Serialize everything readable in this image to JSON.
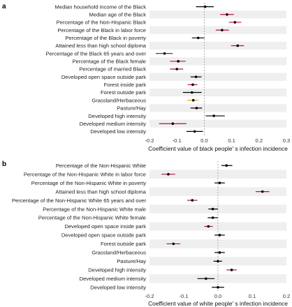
{
  "colors": {
    "positive": "#b5123a",
    "neutral": "#000000",
    "highlight": "#e0a020",
    "band": "#efefef",
    "zero_line": "#999999"
  },
  "chart_data": [
    {
      "type": "forest",
      "panel": "a",
      "xlabel": "Coefficient value of black people' s infection incidence",
      "xlim": [
        -0.2,
        0.3
      ],
      "xticks": [
        -0.2,
        -0.1,
        0.0,
        0.1,
        0.2,
        0.3
      ],
      "xtick_labels": [
        "-0.2",
        "-0.1",
        "0.0",
        "0.1",
        "0.2",
        "0.3"
      ],
      "rows": [
        {
          "label": "Median household income of the Black",
          "value": 0.003,
          "low": -0.03,
          "high": 0.035,
          "color": "neutral"
        },
        {
          "label": "Median age of the Black",
          "value": 0.083,
          "low": 0.058,
          "high": 0.108,
          "color": "positive"
        },
        {
          "label": "Percentage of the Non-Hispanic Black",
          "value": 0.112,
          "low": 0.09,
          "high": 0.135,
          "color": "positive"
        },
        {
          "label": "Percentage of the Black in labor force",
          "value": 0.065,
          "low": 0.042,
          "high": 0.09,
          "color": "positive"
        },
        {
          "label": "Percentage of the Black in poverty",
          "value": -0.022,
          "low": -0.045,
          "high": 0.0,
          "color": "neutral"
        },
        {
          "label": "Attained less than high school diploma",
          "value": 0.122,
          "low": 0.098,
          "high": 0.145,
          "color": "positive"
        },
        {
          "label": "Percentage of the Black 65 years and over",
          "value": -0.145,
          "low": -0.177,
          "high": -0.115,
          "color": "positive"
        },
        {
          "label": "Percentage of the Black female",
          "value": -0.095,
          "low": -0.125,
          "high": -0.068,
          "color": "positive"
        },
        {
          "label": "Percentage of married Black",
          "value": -0.1,
          "low": -0.125,
          "high": -0.077,
          "color": "positive"
        },
        {
          "label": "Developed open space outside park",
          "value": -0.03,
          "low": -0.05,
          "high": -0.01,
          "color": "neutral"
        },
        {
          "label": "Forest inside park",
          "value": -0.042,
          "low": -0.06,
          "high": -0.025,
          "color": "positive"
        },
        {
          "label": "Forest outside park",
          "value": -0.045,
          "low": -0.078,
          "high": -0.01,
          "color": "neutral"
        },
        {
          "label": "Grassland/Herbaceous",
          "value": -0.04,
          "low": -0.062,
          "high": -0.022,
          "color": "highlight"
        },
        {
          "label": "Pasture/Hay",
          "value": -0.028,
          "low": -0.05,
          "high": -0.008,
          "color": "neutral"
        },
        {
          "label": "Developed high intensity",
          "value": 0.035,
          "low": 0.005,
          "high": 0.075,
          "color": "neutral"
        },
        {
          "label": "Developed medium intensity",
          "value": -0.115,
          "low": -0.165,
          "high": -0.065,
          "color": "positive"
        },
        {
          "label": "Developed low intensity",
          "value": -0.035,
          "low": -0.065,
          "high": -0.005,
          "color": "neutral"
        }
      ]
    },
    {
      "type": "forest",
      "panel": "b",
      "xlabel": "Coefficient value of white people' s infection incidence",
      "xlim": [
        -0.2,
        0.2
      ],
      "xticks": [
        -0.2,
        -0.1,
        0.0,
        0.1,
        0.2
      ],
      "xtick_labels": [
        "-0.2",
        "-0.1",
        "0.0",
        "0.1",
        "0.2"
      ],
      "rows": [
        {
          "label": "Percentage of the Non-Hispanic White",
          "value": 0.025,
          "low": 0.01,
          "high": 0.042,
          "color": "neutral"
        },
        {
          "label": "Percentage of the Non-Hispanic White in labor force",
          "value": -0.145,
          "low": -0.165,
          "high": -0.125,
          "color": "positive"
        },
        {
          "label": "Percentage of the Non-Hispanic White in poverty",
          "value": 0.005,
          "low": -0.01,
          "high": 0.02,
          "color": "neutral"
        },
        {
          "label": "Attained less than high school diploma",
          "value": 0.13,
          "low": 0.11,
          "high": 0.15,
          "color": "positive"
        },
        {
          "label": "Percentage of the Non-Hispanic White 65 years and over",
          "value": -0.075,
          "low": -0.09,
          "high": -0.06,
          "color": "positive"
        },
        {
          "label": "Percentage of the Non-Hispanic White male",
          "value": -0.015,
          "low": -0.028,
          "high": 0.0,
          "color": "neutral"
        },
        {
          "label": "Percentage of the Non-Hispanic White female",
          "value": -0.015,
          "low": -0.03,
          "high": 0.0,
          "color": "neutral"
        },
        {
          "label": "Developed open space inside park",
          "value": -0.028,
          "low": -0.04,
          "high": -0.015,
          "color": "positive"
        },
        {
          "label": "Developed open space outside park",
          "value": 0.005,
          "low": -0.01,
          "high": 0.02,
          "color": "neutral"
        },
        {
          "label": "Forest outside park",
          "value": -0.13,
          "low": -0.15,
          "high": -0.11,
          "color": "positive"
        },
        {
          "label": "Grassland/Herbaceous",
          "value": 0.005,
          "low": -0.01,
          "high": 0.02,
          "color": "neutral"
        },
        {
          "label": "Pasture/Hay",
          "value": 0.0,
          "low": -0.013,
          "high": 0.012,
          "color": "neutral"
        },
        {
          "label": "Developed high intensity",
          "value": 0.04,
          "low": 0.025,
          "high": 0.055,
          "color": "positive"
        },
        {
          "label": "Developed medium intensity",
          "value": -0.035,
          "low": -0.06,
          "high": -0.01,
          "color": "neutral"
        },
        {
          "label": "Developed low intensity",
          "value": 0.0,
          "low": -0.018,
          "high": 0.018,
          "color": "neutral"
        }
      ]
    }
  ]
}
